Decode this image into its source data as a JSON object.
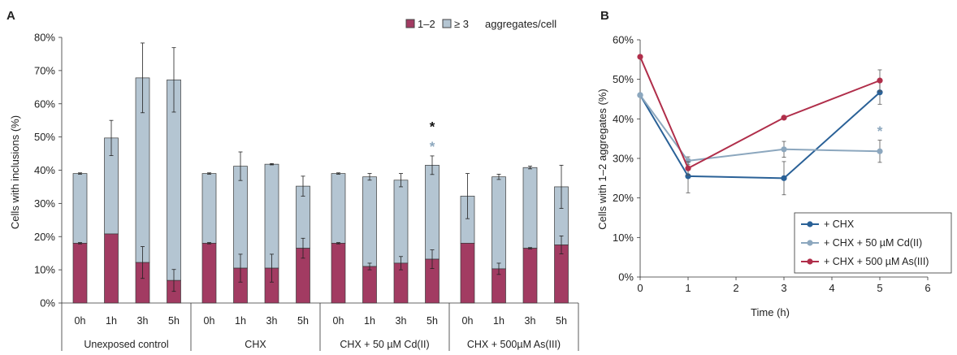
{
  "colors": {
    "bar_low": "#A23B62",
    "bar_high": "#B4C5D2",
    "line_chx": "#2A6197",
    "line_cd": "#8CA7BE",
    "line_as": "#B02E4A",
    "star_black": "#111111",
    "star_blue": "#8CA7BE"
  },
  "chart_data": [
    {
      "panel": "A",
      "type": "bar",
      "stacked": true,
      "ylabel": "Cells with inclusions (%)",
      "ylim": [
        0,
        80
      ],
      "yticks": [
        "0%",
        "10%",
        "20%",
        "30%",
        "40%",
        "50%",
        "60%",
        "70%",
        "80%"
      ],
      "grid": false,
      "legend_position": "top-right",
      "legend": {
        "items": [
          "1–2",
          "≥ 3"
        ],
        "suffix": "aggregates/cell"
      },
      "groups": [
        {
          "label": "Unexposed control",
          "categories": [
            "0h",
            "1h",
            "3h",
            "5h"
          ]
        },
        {
          "label": "CHX",
          "categories": [
            "0h",
            "1h",
            "3h",
            "5h"
          ]
        },
        {
          "label": "CHX + 50 µM Cd(II)",
          "categories": [
            "0h",
            "1h",
            "3h",
            "5h"
          ]
        },
        {
          "label": "CHX + 500µM As(III)",
          "categories": [
            "0h",
            "1h",
            "3h",
            "5h"
          ]
        }
      ],
      "series": [
        {
          "name": "1–2",
          "values": [
            18,
            20.8,
            12.2,
            6.8,
            18,
            10.5,
            10.5,
            16.5,
            18,
            11,
            12,
            13.2,
            18,
            10.3,
            16.5,
            17.5
          ],
          "errors": [
            0.2,
            0,
            4.8,
            3.3,
            0.2,
            4.2,
            4.2,
            3,
            0.2,
            1,
            2,
            2.8,
            0,
            1.7,
            0.2,
            2.7
          ]
        },
        {
          "name": "≥ 3",
          "totals": [
            39,
            49.7,
            67.8,
            67.2,
            39,
            41.2,
            41.8,
            35.2,
            39,
            38,
            37,
            41.5,
            32.2,
            38,
            40.8,
            35
          ],
          "errors": [
            0.2,
            5.3,
            10.5,
            9.7,
            0.2,
            4.3,
            0.2,
            3,
            0.2,
            1,
            2,
            2.8,
            6.8,
            0.8,
            0.4,
            6.5
          ]
        }
      ],
      "annotations": [
        {
          "text": "*",
          "index": 11,
          "y": 53.5,
          "color": "star_black"
        },
        {
          "text": "*",
          "index": 11,
          "y": 47.5,
          "color": "star_blue"
        }
      ]
    },
    {
      "panel": "B",
      "type": "line",
      "xlabel": "Time (h)",
      "ylabel": "Cells with 1–2 aggregates (%)",
      "xlim": [
        0,
        6
      ],
      "ylim": [
        0,
        60
      ],
      "xticks": [
        "0",
        "1",
        "2",
        "3",
        "4",
        "5",
        "6"
      ],
      "yticks": [
        "0%",
        "10%",
        "20%",
        "30%",
        "40%",
        "50%",
        "60%"
      ],
      "grid": false,
      "legend_position": "bottom-right",
      "x": [
        0,
        1,
        3,
        5
      ],
      "series": [
        {
          "name": "+ CHX",
          "values": [
            46,
            25.5,
            25,
            46.7
          ],
          "errors": [
            0,
            4.2,
            4.2,
            3
          ],
          "color": "line_chx"
        },
        {
          "name": "+ CHX + 50 µM Cd(II)",
          "values": [
            46,
            29.4,
            32.3,
            31.8
          ],
          "errors": [
            0,
            1,
            2,
            2.8
          ],
          "color": "line_cd"
        },
        {
          "name": "+ CHX + 500 µM As(III)",
          "values": [
            55.7,
            27.5,
            40.3,
            49.7
          ],
          "errors": [
            0,
            1.7,
            0.2,
            2.7
          ],
          "color": "line_as"
        }
      ],
      "annotations": [
        {
          "text": "*",
          "x": 5,
          "y": 37.2,
          "color": "star_blue"
        }
      ]
    }
  ]
}
